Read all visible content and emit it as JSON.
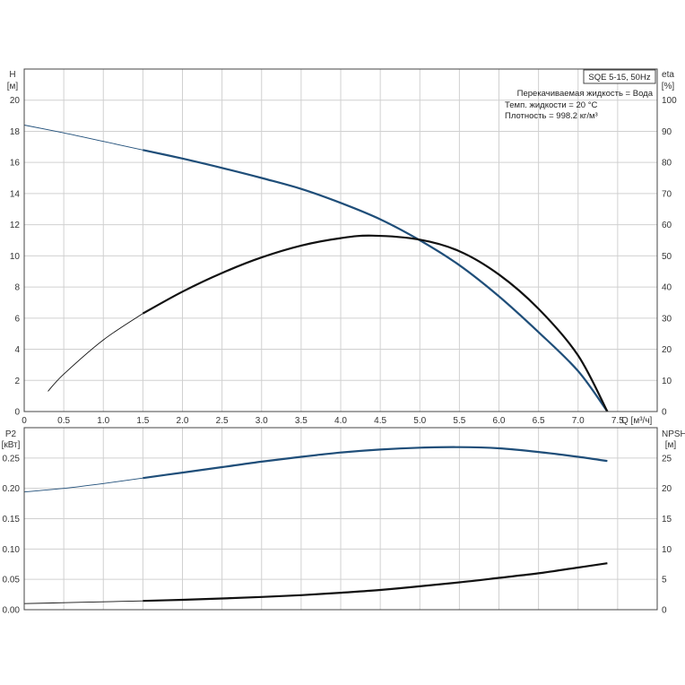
{
  "chart_data": [
    {
      "type": "line",
      "title": "SQE 5-15, 50Hz",
      "info_lines": [
        "Перекачиваемая жидкость = Вода",
        "Темп. жидкости = 20 °C",
        "Плотность = 998.2 кг/м³"
      ],
      "xlabel": "Q [м³/ч]",
      "xlim": [
        0,
        8
      ],
      "xticks": [
        "0",
        "0.5",
        "1.0",
        "1.5",
        "2.0",
        "2.5",
        "3.0",
        "3.5",
        "4.0",
        "4.5",
        "5.0",
        "5.5",
        "6.0",
        "6.5",
        "7.0",
        "7.5"
      ],
      "y_left_label": [
        "H",
        "[м]"
      ],
      "ylim_left": [
        0,
        22
      ],
      "yticks_left": [
        "0",
        "2",
        "4",
        "6",
        "8",
        "10",
        "12",
        "14",
        "16",
        "18",
        "20"
      ],
      "y_right_label": [
        "eta",
        "[%]"
      ],
      "ylim_right": [
        0,
        110
      ],
      "yticks_right": [
        "0",
        "10",
        "20",
        "30",
        "40",
        "50",
        "60",
        "70",
        "80",
        "90",
        "100"
      ],
      "grid": true,
      "series": [
        {
          "axis": "left",
          "color": "#1f4e79",
          "extrapolated_until_x": 1.5,
          "x": [
            0,
            0.5,
            1.0,
            1.5,
            2.0,
            2.5,
            3.0,
            3.5,
            4.0,
            4.5,
            5.0,
            5.5,
            6.0,
            6.5,
            7.0,
            7.37
          ],
          "y": [
            18.4,
            17.9,
            17.35,
            16.8,
            16.25,
            15.65,
            15.0,
            14.3,
            13.4,
            12.35,
            11.0,
            9.4,
            7.4,
            5.1,
            2.6,
            0
          ]
        },
        {
          "axis": "right",
          "color": "#111111",
          "extrapolated_until_x": 1.5,
          "x": [
            0.3,
            0.5,
            1.0,
            1.5,
            2.0,
            2.5,
            3.0,
            3.5,
            4.0,
            4.4,
            5.0,
            5.5,
            6.0,
            6.5,
            7.0,
            7.37
          ],
          "y": [
            6.5,
            12,
            23,
            31.5,
            38.5,
            44.5,
            49.5,
            53.3,
            55.7,
            56.5,
            55.2,
            51.5,
            44,
            33,
            18,
            0
          ]
        }
      ]
    },
    {
      "type": "line",
      "xlim": [
        0,
        8
      ],
      "y_left_label": [
        "P2",
        "[кВт]"
      ],
      "ylim_left": [
        0,
        0.3
      ],
      "yticks_left": [
        "0.00",
        "0.05",
        "0.10",
        "0.15",
        "0.20",
        "0.25"
      ],
      "y_right_label": [
        "NPSH",
        "[м]"
      ],
      "ylim_right": [
        0,
        30
      ],
      "yticks_right": [
        "0",
        "5",
        "10",
        "15",
        "20",
        "25"
      ],
      "grid": true,
      "series": [
        {
          "axis": "left",
          "color": "#1f4e79",
          "extrapolated_until_x": 1.5,
          "x": [
            0,
            0.5,
            1.0,
            1.5,
            2.0,
            2.5,
            3.0,
            3.5,
            4.0,
            4.5,
            5.0,
            5.5,
            6.0,
            6.5,
            7.0,
            7.37
          ],
          "y": [
            0.194,
            0.2,
            0.208,
            0.217,
            0.226,
            0.235,
            0.244,
            0.252,
            0.259,
            0.264,
            0.267,
            0.268,
            0.266,
            0.26,
            0.252,
            0.245
          ]
        },
        {
          "axis": "left",
          "color": "#111111",
          "extrapolated_until_x": 1.5,
          "x": [
            0,
            0.5,
            1.0,
            1.5,
            2.0,
            2.5,
            3.0,
            3.5,
            4.0,
            4.5,
            5.0,
            5.5,
            6.0,
            6.5,
            7.0,
            7.37
          ],
          "y": [
            0.01,
            0.0115,
            0.013,
            0.0145,
            0.0163,
            0.0185,
            0.021,
            0.024,
            0.028,
            0.0325,
            0.0385,
            0.045,
            0.0525,
            0.06,
            0.0695,
            0.0765
          ]
        }
      ]
    }
  ]
}
